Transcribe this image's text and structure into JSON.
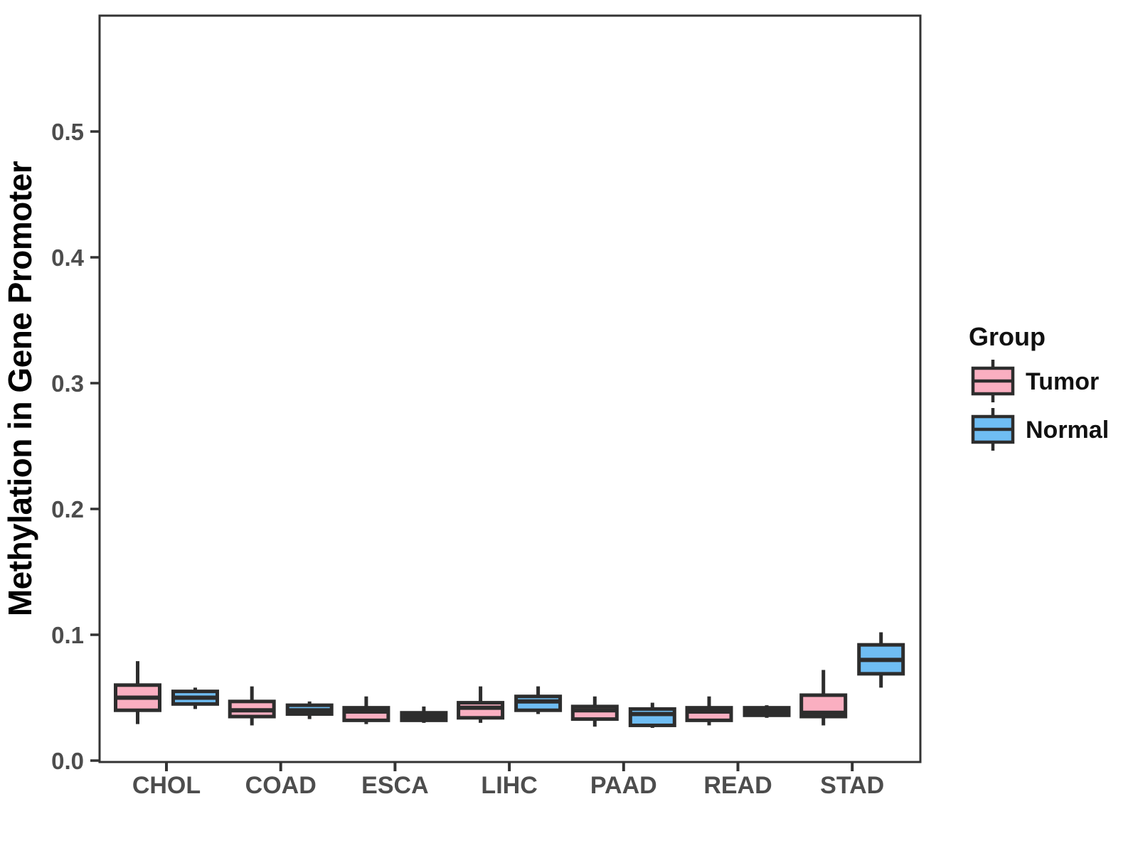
{
  "colors": {
    "tumor_fill": "#FAAFC1",
    "normal_fill": "#6FBDF3",
    "geom_line": "#2d2d2d",
    "panel_border": "#333333",
    "axis_tick": "#333333",
    "tick_label_text": "#4d4d4d",
    "legend_text": "#111111",
    "background": "#ffffff"
  },
  "y_axis": {
    "title": "Methylation in Gene Promoter",
    "tick_labels": [
      "0.0",
      "0.1",
      "0.2",
      "0.3",
      "0.4",
      "0.5"
    ]
  },
  "x_axis": {
    "categories": [
      "CHOL",
      "COAD",
      "ESCA",
      "LIHC",
      "PAAD",
      "READ",
      "STAD"
    ]
  },
  "legend": {
    "title": "Group",
    "items": [
      {
        "label": "Tumor",
        "color": "#FAAFC1"
      },
      {
        "label": "Normal",
        "color": "#6FBDF3"
      }
    ]
  },
  "chart_data": {
    "type": "boxplot",
    "title": "",
    "xlabel": "",
    "ylabel": "Methylation in Gene Promoter",
    "categories": [
      "CHOL",
      "COAD",
      "ESCA",
      "LIHC",
      "PAAD",
      "READ",
      "STAD"
    ],
    "yticks": [
      0.0,
      0.1,
      0.2,
      0.3,
      0.4,
      0.5
    ],
    "ylim": [
      0,
      0.59
    ],
    "grid": false,
    "legend_position": "right",
    "series": [
      {
        "name": "Tumor",
        "color": "#FAAFC1",
        "values": [
          {
            "whisker_low": 0.029,
            "q1": 0.04,
            "median": 0.05,
            "q3": 0.06,
            "whisker_high": 0.079
          },
          {
            "whisker_low": 0.028,
            "q1": 0.035,
            "median": 0.04,
            "q3": 0.047,
            "whisker_high": 0.059
          },
          {
            "whisker_low": 0.029,
            "q1": 0.032,
            "median": 0.039,
            "q3": 0.042,
            "whisker_high": 0.051
          },
          {
            "whisker_low": 0.03,
            "q1": 0.034,
            "median": 0.042,
            "q3": 0.046,
            "whisker_high": 0.059
          },
          {
            "whisker_low": 0.027,
            "q1": 0.033,
            "median": 0.04,
            "q3": 0.043,
            "whisker_high": 0.051
          },
          {
            "whisker_low": 0.028,
            "q1": 0.032,
            "median": 0.039,
            "q3": 0.042,
            "whisker_high": 0.051
          },
          {
            "whisker_low": 0.028,
            "q1": 0.035,
            "median": 0.038,
            "q3": 0.052,
            "whisker_high": 0.072
          }
        ]
      },
      {
        "name": "Normal",
        "color": "#6FBDF3",
        "values": [
          {
            "whisker_low": 0.041,
            "q1": 0.045,
            "median": 0.05,
            "q3": 0.055,
            "whisker_high": 0.058
          },
          {
            "whisker_low": 0.033,
            "q1": 0.037,
            "median": 0.04,
            "q3": 0.044,
            "whisker_high": 0.047
          },
          {
            "whisker_low": 0.03,
            "q1": 0.032,
            "median": 0.035,
            "q3": 0.038,
            "whisker_high": 0.043
          },
          {
            "whisker_low": 0.037,
            "q1": 0.04,
            "median": 0.047,
            "q3": 0.051,
            "whisker_high": 0.059
          },
          {
            "whisker_low": 0.026,
            "q1": 0.028,
            "median": 0.037,
            "q3": 0.041,
            "whisker_high": 0.046
          },
          {
            "whisker_low": 0.034,
            "q1": 0.036,
            "median": 0.039,
            "q3": 0.042,
            "whisker_high": 0.044
          },
          {
            "whisker_low": 0.058,
            "q1": 0.069,
            "median": 0.08,
            "q3": 0.092,
            "whisker_high": 0.102
          }
        ]
      }
    ]
  }
}
